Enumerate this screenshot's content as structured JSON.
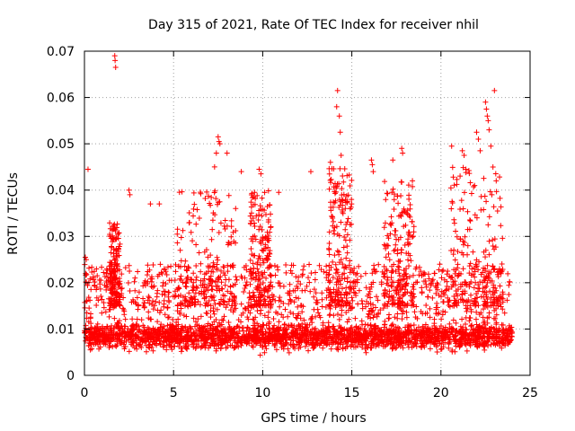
{
  "chart_data": {
    "type": "scatter",
    "title": "Day 315 of 2021, Rate Of TEC Index for receiver nhil",
    "xlabel": "GPS time / hours",
    "ylabel": "ROTI / TECUs",
    "xlim": [
      0,
      25
    ],
    "ylim": [
      0,
      0.07
    ],
    "xticks": [
      "0",
      "5",
      "10",
      "15",
      "20",
      "25"
    ],
    "yticks": [
      "0",
      "0.01",
      "0.02",
      "0.03",
      "0.04",
      "0.05",
      "0.06",
      "0.07"
    ],
    "grid": true,
    "marker": "+",
    "color": "#ff0000",
    "series": [
      {
        "name": "ROTI",
        "note": "Dense band of points from 0 to 24 h; typical ROTI 0.004-0.015 TECU/s with frequent excursions to 0.02-0.035 TECU/s",
        "baseline_points": 2400,
        "outliers": [
          {
            "x": 0.05,
            "y": 0.0255
          },
          {
            "x": 0.1,
            "y": 0.025
          },
          {
            "x": 0.2,
            "y": 0.0445
          },
          {
            "x": 1.7,
            "y": 0.069
          },
          {
            "x": 1.72,
            "y": 0.068
          },
          {
            "x": 1.75,
            "y": 0.0665
          },
          {
            "x": 2.5,
            "y": 0.04
          },
          {
            "x": 2.55,
            "y": 0.039
          },
          {
            "x": 3.7,
            "y": 0.037
          },
          {
            "x": 4.2,
            "y": 0.037
          },
          {
            "x": 7.5,
            "y": 0.0515
          },
          {
            "x": 7.55,
            "y": 0.0505
          },
          {
            "x": 7.6,
            "y": 0.05
          },
          {
            "x": 7.4,
            "y": 0.048
          },
          {
            "x": 8.0,
            "y": 0.048
          },
          {
            "x": 7.3,
            "y": 0.045
          },
          {
            "x": 8.8,
            "y": 0.044
          },
          {
            "x": 9.8,
            "y": 0.0445
          },
          {
            "x": 9.9,
            "y": 0.0435
          },
          {
            "x": 10.9,
            "y": 0.0395
          },
          {
            "x": 12.7,
            "y": 0.044
          },
          {
            "x": 13.8,
            "y": 0.046
          },
          {
            "x": 14.2,
            "y": 0.0615
          },
          {
            "x": 14.15,
            "y": 0.058
          },
          {
            "x": 14.3,
            "y": 0.056
          },
          {
            "x": 14.35,
            "y": 0.0525
          },
          {
            "x": 14.4,
            "y": 0.0475
          },
          {
            "x": 16.1,
            "y": 0.0465
          },
          {
            "x": 16.15,
            "y": 0.0455
          },
          {
            "x": 16.2,
            "y": 0.044
          },
          {
            "x": 17.3,
            "y": 0.0465
          },
          {
            "x": 17.8,
            "y": 0.049
          },
          {
            "x": 17.85,
            "y": 0.048
          },
          {
            "x": 18.4,
            "y": 0.042
          },
          {
            "x": 20.6,
            "y": 0.0495
          },
          {
            "x": 21.2,
            "y": 0.0485
          },
          {
            "x": 21.3,
            "y": 0.0475
          },
          {
            "x": 21.4,
            "y": 0.0445
          },
          {
            "x": 22.0,
            "y": 0.0525
          },
          {
            "x": 22.1,
            "y": 0.051
          },
          {
            "x": 22.2,
            "y": 0.0485
          },
          {
            "x": 22.5,
            "y": 0.059
          },
          {
            "x": 22.55,
            "y": 0.0575
          },
          {
            "x": 22.6,
            "y": 0.056
          },
          {
            "x": 22.65,
            "y": 0.055
          },
          {
            "x": 22.7,
            "y": 0.053
          },
          {
            "x": 22.8,
            "y": 0.0495
          },
          {
            "x": 23.0,
            "y": 0.0615
          },
          {
            "x": 23.1,
            "y": 0.042
          }
        ],
        "burst_windows": [
          {
            "x_start": 1.4,
            "x_end": 2.0,
            "y_max": 0.033
          },
          {
            "x_start": 5.2,
            "x_end": 8.5,
            "y_max": 0.04
          },
          {
            "x_start": 9.3,
            "x_end": 10.5,
            "y_max": 0.04
          },
          {
            "x_start": 13.7,
            "x_end": 15.0,
            "y_max": 0.045
          },
          {
            "x_start": 16.8,
            "x_end": 18.5,
            "y_max": 0.042
          },
          {
            "x_start": 20.5,
            "x_end": 23.5,
            "y_max": 0.045
          }
        ]
      }
    ]
  }
}
